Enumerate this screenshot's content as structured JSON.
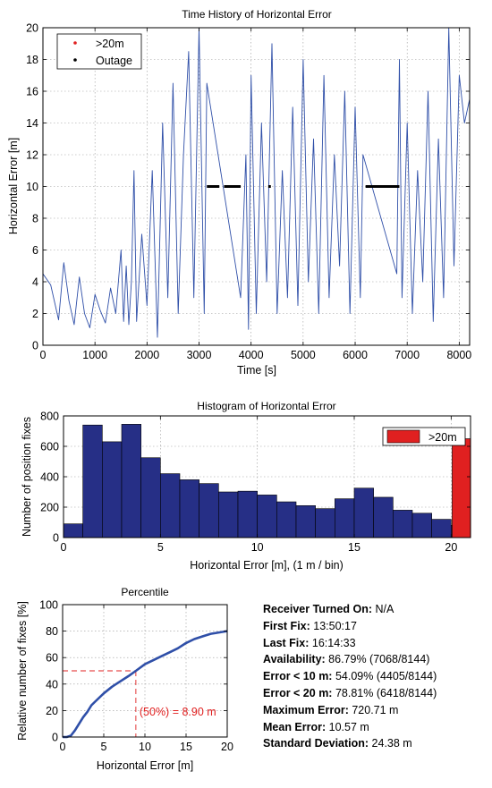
{
  "chart_data": [
    {
      "type": "line",
      "title": "Time History of Horizontal Error",
      "xlabel": "Time [s]",
      "ylabel": "Horizontal Error [m]",
      "xlim": [
        0,
        8200
      ],
      "ylim": [
        0,
        20
      ],
      "x_ticks": [
        0,
        1000,
        2000,
        3000,
        4000,
        5000,
        6000,
        7000,
        8000
      ],
      "y_ticks": [
        0,
        2,
        4,
        6,
        8,
        10,
        12,
        14,
        16,
        18,
        20
      ],
      "grid": true,
      "legend": {
        "position": "top-left",
        "entries": [
          {
            "label": ">20m",
            "color": "#e02020"
          },
          {
            "label": "Outage",
            "color": "#000000"
          }
        ]
      },
      "series": [
        {
          "name": "",
          "color": "#2f4fa8",
          "x": [
            0,
            150,
            300,
            400,
            500,
            600,
            700,
            800,
            900,
            1000,
            1100,
            1200,
            1300,
            1400,
            1500,
            1550,
            1600,
            1650,
            1700,
            1750,
            1800,
            1900,
            2000,
            2100,
            2200,
            2300,
            2400,
            2500,
            2600,
            2700,
            2800,
            2900,
            3000,
            3100,
            3150,
            3800,
            3900,
            3950,
            4000,
            4100,
            4200,
            4300,
            4400,
            4500,
            4600,
            4700,
            4800,
            4900,
            5000,
            5100,
            5200,
            5300,
            5400,
            5500,
            5600,
            5700,
            5800,
            5900,
            6000,
            6100,
            6150,
            6800,
            6850,
            6900,
            7000,
            7100,
            7200,
            7300,
            7400,
            7500,
            7600,
            7700,
            7800,
            7900,
            8000,
            8100,
            8200
          ],
          "y": [
            4.5,
            3.8,
            1.6,
            5.2,
            2.8,
            1.3,
            4.3,
            2.0,
            1.1,
            3.2,
            2.2,
            1.4,
            3.6,
            2.0,
            6.0,
            1.5,
            5.0,
            1.3,
            4.0,
            11.0,
            1.5,
            7.0,
            2.5,
            11.0,
            0.5,
            14.0,
            3.0,
            16.5,
            2.0,
            12.0,
            18.5,
            3.0,
            20.0,
            2.0,
            16.5,
            3.0,
            12.0,
            1.0,
            17.0,
            2.0,
            14.0,
            4.0,
            19.0,
            2.0,
            11.0,
            3.0,
            15.0,
            2.5,
            18.0,
            4.0,
            13.0,
            2.0,
            17.0,
            3.0,
            12.0,
            5.0,
            16.0,
            2.0,
            15.0,
            3.0,
            12.0,
            4.5,
            18.0,
            3.0,
            14.0,
            2.0,
            11.0,
            4.0,
            16.0,
            1.5,
            13.0,
            3.0,
            20.0,
            5.0,
            17.0,
            14.0,
            15.5
          ]
        },
        {
          "name": "",
          "color": "#000000",
          "x_ranges": [
            [
              3150,
              3390
            ],
            [
              3480,
              3800
            ],
            [
              4330,
              4380
            ],
            [
              6200,
              6850
            ]
          ],
          "y": 10
        }
      ]
    },
    {
      "type": "bar",
      "title": "Histogram of Horizontal Error",
      "xlabel": "Horizontal Error [m], (1 m / bin)",
      "ylabel": "Number of position fixes",
      "xlim": [
        0,
        21
      ],
      "ylim": [
        0,
        800
      ],
      "x_ticks": [
        0,
        5,
        10,
        15,
        20
      ],
      "y_ticks": [
        0,
        200,
        400,
        600,
        800
      ],
      "grid": true,
      "legend": {
        "position": "top-right",
        "entries": [
          {
            "label": ">20m",
            "color": "#e02020"
          }
        ]
      },
      "bin_starts": [
        0,
        1,
        2,
        3,
        4,
        5,
        6,
        7,
        8,
        9,
        10,
        11,
        12,
        13,
        14,
        15,
        16,
        17,
        18,
        19,
        20
      ],
      "values": [
        90,
        740,
        630,
        745,
        525,
        420,
        380,
        355,
        300,
        305,
        280,
        235,
        210,
        190,
        255,
        325,
        265,
        180,
        160,
        120,
        80
      ],
      "overflow_bar": {
        "x_start": 20.05,
        "value": 650,
        "color": "#e02020"
      },
      "bar_color": "#262f86"
    },
    {
      "type": "line",
      "title": "Percentile",
      "xlabel": "Horizontal Error [m]",
      "ylabel": "Relative number of fixes [%]",
      "xlim": [
        0,
        20
      ],
      "ylim": [
        0,
        100
      ],
      "x_ticks": [
        0,
        5,
        10,
        15,
        20
      ],
      "y_ticks": [
        0,
        20,
        40,
        60,
        80,
        100
      ],
      "grid": true,
      "series": [
        {
          "name": "",
          "color": "#2f4fa8",
          "x": [
            0,
            0.5,
            1,
            1.5,
            2,
            2.5,
            3,
            3.5,
            4,
            5,
            6,
            7,
            8,
            8.9,
            10,
            11,
            12,
            13,
            14,
            15,
            16,
            17,
            18,
            19,
            20
          ],
          "y": [
            0,
            0,
            1,
            5,
            10,
            15,
            19,
            24,
            27,
            33,
            38,
            42,
            46,
            50,
            55,
            58,
            61,
            64,
            67,
            71,
            74,
            76,
            78,
            79,
            80
          ]
        }
      ],
      "marker": {
        "x": 8.9,
        "y": 50,
        "color": "#e02020",
        "label": "(50%) = 8.90 m"
      }
    }
  ],
  "stats": [
    {
      "label": "Receiver Turned On:",
      "value": "N/A"
    },
    {
      "label": "First Fix:",
      "value": "13:50:17"
    },
    {
      "label": "Last Fix:",
      "value": "16:14:33"
    },
    {
      "label": "Availability:",
      "value": "86.79% (7068/8144)"
    },
    {
      "label": "Error < 10 m:",
      "value": "54.09% (4405/8144)"
    },
    {
      "label": "Error < 20 m:",
      "value": "78.81% (6418/8144)"
    },
    {
      "label": "Maximum Error:",
      "value": "720.71 m"
    },
    {
      "label": "Mean Error:",
      "value": "10.57 m"
    },
    {
      "label": "Standard Deviation:",
      "value": "24.38 m"
    }
  ]
}
